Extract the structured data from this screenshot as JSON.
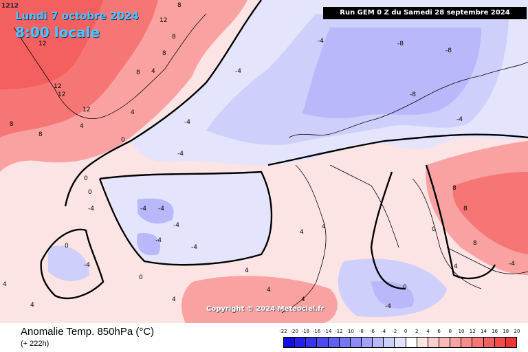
{
  "header": {
    "date_line": "Lundi 7 octobre 2024",
    "time_line": "8:00 locale",
    "corner_code": "1212",
    "run_info": "Run GEM 0 Z du Samedi 28 septembre 2024"
  },
  "footer": {
    "field_title": "Anomalie Temp. 850hPa (°C)",
    "lead_time": "(+ 222h)",
    "copyright": "Copyright © 2024 Meteociel.fr"
  },
  "scale": {
    "labels": [
      "-22",
      "-20",
      "-18",
      "-16",
      "-14",
      "-12",
      "-10",
      "-8",
      "-6",
      "-4",
      "-2",
      "0",
      "2",
      "4",
      "6",
      "8",
      "10",
      "12",
      "14",
      "16",
      "18",
      "20"
    ],
    "colors": [
      "#1010e0",
      "#2323e8",
      "#3636ee",
      "#4b4bf2",
      "#6060f4",
      "#7676f6",
      "#8c8cf8",
      "#a2a2fa",
      "#b8b8fb",
      "#cfcffc",
      "#e4e4fd",
      "#ffffff",
      "#fde4e4",
      "#fccfcf",
      "#fbb8b8",
      "#faa2a2",
      "#f88c8c",
      "#f67676",
      "#f46060",
      "#f24b4b",
      "#ee3636"
    ]
  },
  "map_labels": [
    {
      "text": "12"
    },
    {
      "text": "12"
    },
    {
      "text": "12"
    },
    {
      "text": "8"
    },
    {
      "text": "8"
    },
    {
      "text": "8"
    },
    {
      "text": "12"
    },
    {
      "text": "8"
    },
    {
      "text": "12"
    },
    {
      "text": "8"
    },
    {
      "text": "4"
    },
    {
      "text": "8"
    },
    {
      "text": "4"
    },
    {
      "text": "0"
    },
    {
      "text": "4"
    },
    {
      "text": "-4"
    },
    {
      "text": "-4"
    },
    {
      "text": "-8"
    },
    {
      "text": "-8"
    },
    {
      "text": "-4"
    },
    {
      "text": "-8"
    },
    {
      "text": "-4"
    },
    {
      "text": "-4"
    },
    {
      "text": "-4"
    },
    {
      "text": "-4"
    },
    {
      "text": "-4"
    },
    {
      "text": "-4"
    },
    {
      "text": "-4"
    },
    {
      "text": "-4"
    },
    {
      "text": "0"
    },
    {
      "text": "0"
    },
    {
      "text": "0"
    },
    {
      "text": "0"
    },
    {
      "text": "4"
    },
    {
      "text": "4"
    },
    {
      "text": "4"
    },
    {
      "text": "4"
    },
    {
      "text": "4"
    },
    {
      "text": "8"
    },
    {
      "text": "8"
    },
    {
      "text": "4"
    },
    {
      "text": "-4"
    },
    {
      "text": "-4"
    },
    {
      "text": "4"
    },
    {
      "text": "0"
    },
    {
      "text": "0"
    },
    {
      "text": "4"
    },
    {
      "text": "-4"
    },
    {
      "text": "4"
    },
    {
      "text": "8"
    }
  ],
  "colors": {
    "warm_strong": "#f46060",
    "warm_mid": "#faa2a2",
    "warm_light": "#fde4e4",
    "cool_light": "#e4e4fd",
    "cool_mid": "#b8b8fb",
    "cool_strong": "#8c8cf8",
    "coast": "#000000"
  }
}
